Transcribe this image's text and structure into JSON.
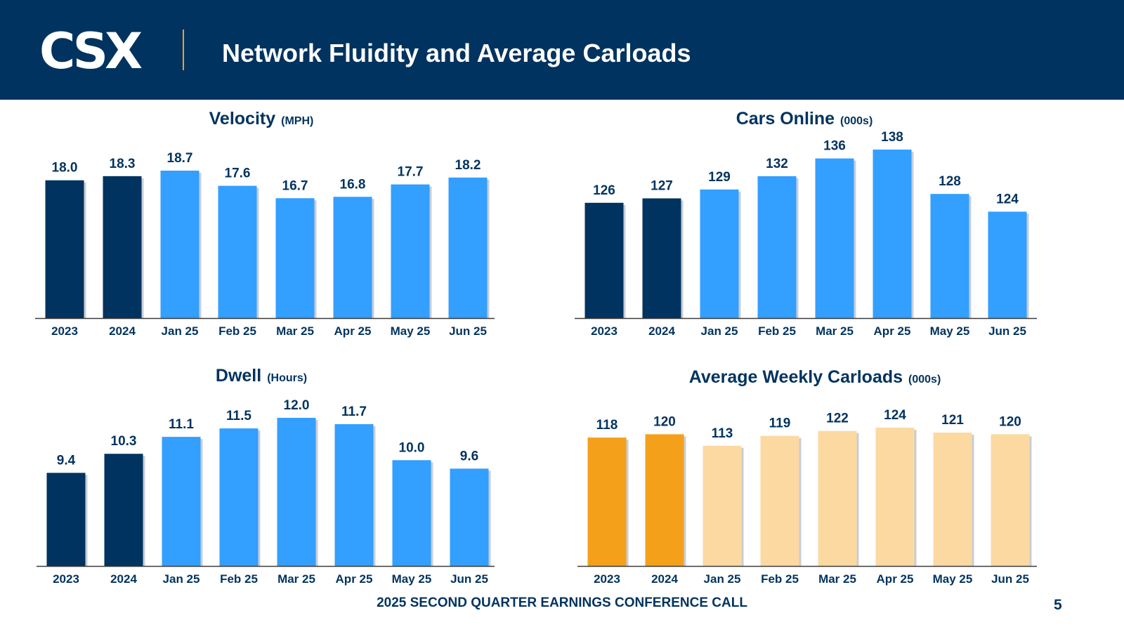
{
  "header": {
    "logo_text": "CSX",
    "title": "Network Fluidity and Average Carloads"
  },
  "footer": {
    "text": "2025 SECOND QUARTER EARNINGS CONFERENCE CALL",
    "page_number": "5"
  },
  "colors": {
    "header_bg": "#00335f",
    "dark_navy": "#00335f",
    "bright_blue": "#339ffe",
    "orange": "#f5a01b",
    "light_orange": "#fdd9a2",
    "accent_line": "#f5a01b"
  },
  "chart_data": [
    {
      "type": "bar",
      "title": "Velocity",
      "unit": "(MPH)",
      "categories": [
        "2023",
        "2024",
        "Jan 25",
        "Feb 25",
        "Mar 25",
        "Apr 25",
        "May 25",
        "Jun 25"
      ],
      "values": [
        18.0,
        18.3,
        18.7,
        17.6,
        16.7,
        16.8,
        17.7,
        18.2
      ],
      "labels": [
        "18.0",
        "18.3",
        "18.7",
        "17.6",
        "16.7",
        "16.8",
        "17.7",
        "18.2"
      ],
      "ylim": [
        0,
        20
      ],
      "bar_colors": [
        "#00335f",
        "#00335f",
        "#339ffe",
        "#339ffe",
        "#339ffe",
        "#339ffe",
        "#339ffe",
        "#339ffe"
      ]
    },
    {
      "type": "bar",
      "title": "Cars Online",
      "unit": "(000s)",
      "categories": [
        "2023",
        "2024",
        "Jan 25",
        "Feb 25",
        "Mar 25",
        "Apr 25",
        "May 25",
        "Jun 25"
      ],
      "values": [
        126,
        127,
        129,
        132,
        136,
        138,
        128,
        124
      ],
      "labels": [
        "126",
        "127",
        "129",
        "132",
        "136",
        "138",
        "128",
        "124"
      ],
      "ylim": [
        0,
        150
      ],
      "bar_colors": [
        "#00335f",
        "#00335f",
        "#339ffe",
        "#339ffe",
        "#339ffe",
        "#339ffe",
        "#339ffe",
        "#339ffe"
      ]
    },
    {
      "type": "bar",
      "title": "Dwell",
      "unit": "(Hours)",
      "categories": [
        "2023",
        "2024",
        "Jan 25",
        "Feb 25",
        "Mar 25",
        "Apr 25",
        "May 25",
        "Jun 25"
      ],
      "values": [
        9.4,
        10.3,
        11.1,
        11.5,
        12.0,
        11.7,
        10.0,
        9.6
      ],
      "labels": [
        "9.4",
        "10.3",
        "11.1",
        "11.5",
        "12.0",
        "11.7",
        "10.0",
        "9.6"
      ],
      "ylim": [
        0,
        13
      ],
      "bar_colors": [
        "#00335f",
        "#00335f",
        "#339ffe",
        "#339ffe",
        "#339ffe",
        "#339ffe",
        "#339ffe",
        "#339ffe"
      ]
    },
    {
      "type": "bar",
      "title": "Average Weekly Carloads",
      "unit": "(000s)",
      "categories": [
        "2023",
        "2024",
        "Jan 25",
        "Feb 25",
        "Mar 25",
        "Apr 25",
        "May 25",
        "Jun 25"
      ],
      "values": [
        118,
        120,
        113,
        119,
        122,
        124,
        121,
        120
      ],
      "labels": [
        "118",
        "120",
        "113",
        "119",
        "122",
        "124",
        "121",
        "120"
      ],
      "ylim": [
        0,
        130
      ],
      "bar_colors": [
        "#f5a01b",
        "#f5a01b",
        "#fdd9a2",
        "#fdd9a2",
        "#fdd9a2",
        "#fdd9a2",
        "#fdd9a2",
        "#fdd9a2"
      ]
    }
  ]
}
